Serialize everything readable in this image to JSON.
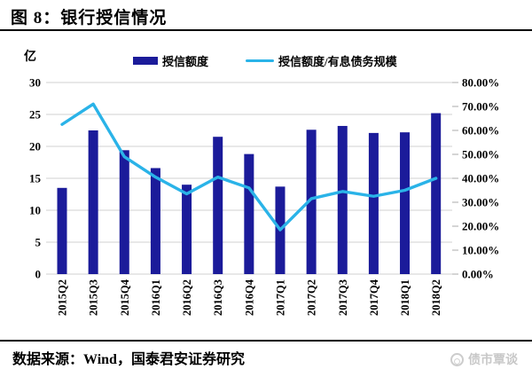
{
  "header": {
    "title": "图 8：银行授信情况"
  },
  "footer": {
    "source": "数据来源：Wind，国泰君安证券研究",
    "watermark": "债市覃谈"
  },
  "colors": {
    "bar": "#1b1b9a",
    "line": "#2ab3e8",
    "grid": "#d9d9d9",
    "axis_text": "#000000",
    "watermark_gray": "#c8c8c8"
  },
  "chart_data": {
    "type": "bar",
    "subtype": "bar+line combo, dual axis",
    "title": "图 8：银行授信情况",
    "unit_label": "亿",
    "categories": [
      "2015Q2",
      "2015Q3",
      "2015Q4",
      "2016Q1",
      "2016Q2",
      "2016Q3",
      "2016Q4",
      "2017Q1",
      "2017Q2",
      "2017Q3",
      "2017Q4",
      "2018Q1",
      "2018Q2"
    ],
    "series": [
      {
        "name": "授信额度",
        "type": "bar",
        "axis": "left",
        "color": "#1b1b9a",
        "values": [
          13.5,
          22.5,
          19.4,
          16.6,
          14.0,
          21.5,
          18.8,
          13.7,
          22.6,
          23.2,
          22.1,
          22.2,
          25.2
        ]
      },
      {
        "name": "授信额度/有息债务规模",
        "type": "line",
        "axis": "right",
        "color": "#2ab3e8",
        "values_percent": [
          62.5,
          71.0,
          49.0,
          40.5,
          33.5,
          40.5,
          36.0,
          18.5,
          31.5,
          34.5,
          32.5,
          35.0,
          40.0
        ]
      }
    ],
    "left_axis": {
      "range": [
        0,
        30
      ],
      "ticks": [
        0,
        5,
        10,
        15,
        20,
        25,
        30
      ]
    },
    "right_axis": {
      "range": [
        0,
        80
      ],
      "tick_labels": [
        "0.00%",
        "10.00%",
        "20.00%",
        "30.00%",
        "40.00%",
        "50.00%",
        "60.00%",
        "70.00%",
        "80.00%"
      ]
    },
    "grid": true,
    "legend_position": "top-center"
  }
}
